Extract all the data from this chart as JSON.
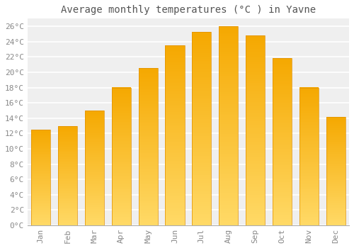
{
  "title": "Average monthly temperatures (°C ) in Yavne",
  "months": [
    "Jan",
    "Feb",
    "Mar",
    "Apr",
    "May",
    "Jun",
    "Jul",
    "Aug",
    "Sep",
    "Oct",
    "Nov",
    "Dec"
  ],
  "temperatures": [
    12.5,
    13.0,
    15.0,
    18.0,
    20.5,
    23.5,
    25.3,
    26.0,
    24.8,
    21.8,
    18.0,
    14.2
  ],
  "bar_color_top": "#F5A800",
  "bar_color_bottom": "#FFD966",
  "bar_edge_color": "#E09000",
  "background_color": "#FFFFFF",
  "plot_bg_color": "#EFEFEF",
  "grid_color": "#FFFFFF",
  "ytick_step": 2,
  "ymax": 27,
  "title_fontsize": 10,
  "tick_fontsize": 8,
  "font_color": "#888888",
  "title_color": "#555555"
}
